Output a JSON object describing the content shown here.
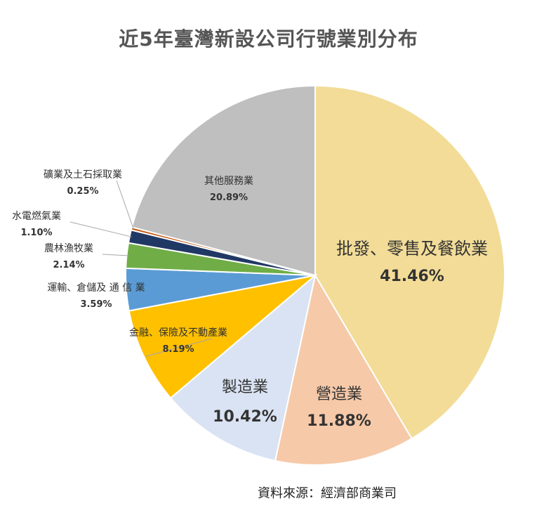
{
  "chart_data": {
    "type": "pie",
    "title": "近5年臺灣新設公司行號業別分布",
    "slices": [
      {
        "label": "批發、零售及餐飲業",
        "value": 41.46,
        "value_text": "41.46%",
        "color": "#f2dc97"
      },
      {
        "label": "營造業",
        "value": 11.88,
        "value_text": "11.88%",
        "color": "#f6c9a8"
      },
      {
        "label": "製造業",
        "value": 10.42,
        "value_text": "10.42%",
        "color": "#dae3f3"
      },
      {
        "label": "金融、保險及不動產業",
        "value": 8.19,
        "value_text": "8.19%",
        "color": "#ffc000"
      },
      {
        "label": "運輸、倉儲及 通 信 業",
        "value": 3.59,
        "value_text": "3.59%",
        "color": "#5b9bd5"
      },
      {
        "label": "農林漁牧業",
        "value": 2.14,
        "value_text": "2.14%",
        "color": "#70ad47"
      },
      {
        "label": "水電燃氣業",
        "value": 1.1,
        "value_text": "1.10%",
        "color": "#203864"
      },
      {
        "label": "礦業及土石採取業",
        "value": 0.25,
        "value_text": "0.25%",
        "color": "#c55a11"
      },
      {
        "label": "其他服務業",
        "value": 20.89,
        "value_text": "20.89%",
        "color": "#bfbfbf"
      }
    ]
  },
  "source_note": "資料來源：經濟部商業司"
}
